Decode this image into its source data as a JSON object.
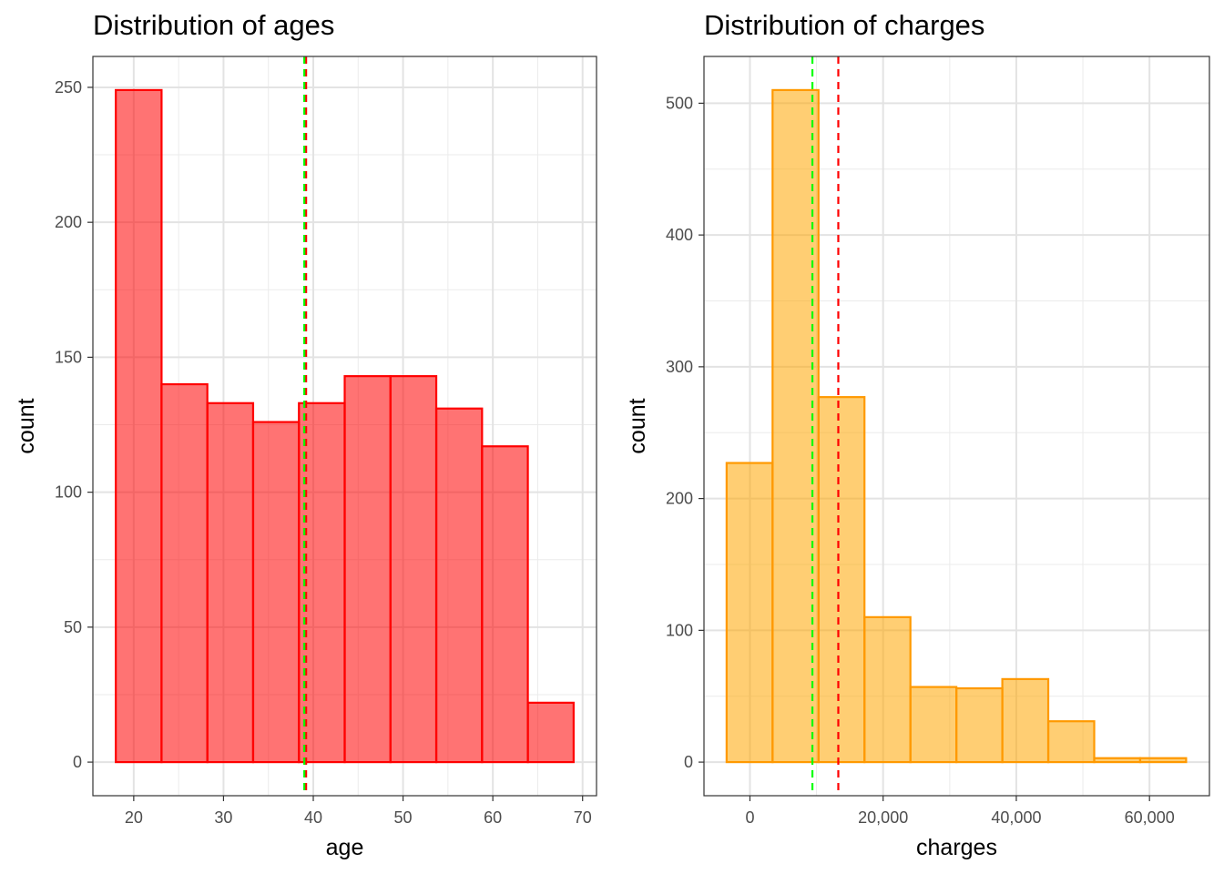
{
  "chart_data": [
    {
      "type": "histogram",
      "title": "Distribution of ages",
      "xlabel": "age",
      "ylabel": "count",
      "xlim": [
        15.45,
        71.55
      ],
      "ylim": [
        -12.45,
        261.45
      ],
      "xticks": [
        20,
        30,
        40,
        50,
        60,
        70
      ],
      "xtick_labels": [
        "20",
        "30",
        "40",
        "50",
        "60",
        "70"
      ],
      "yticks": [
        0,
        50,
        100,
        150,
        200,
        250
      ],
      "ytick_labels": [
        "0",
        "50",
        "100",
        "150",
        "200",
        "250"
      ],
      "bin_edges": [
        18,
        23.1,
        28.2,
        33.3,
        38.4,
        43.5,
        48.6,
        53.7,
        58.8,
        63.9,
        69
      ],
      "counts": [
        249,
        140,
        133,
        126,
        133,
        143,
        143,
        131,
        117,
        22
      ],
      "fill": "#ff0000",
      "fill_opacity": 0.55,
      "stroke": "#ff0000",
      "grid": true,
      "vlines": [
        {
          "value": 39.2,
          "color": "#ff0000",
          "style": "dashed"
        },
        {
          "value": 39.0,
          "color": "#00ff00",
          "style": "dashed"
        }
      ]
    },
    {
      "type": "histogram",
      "title": "Distribution of charges",
      "xlabel": "charges",
      "ylabel": "count",
      "xlim": [
        -6900,
        69000
      ],
      "ylim": [
        -25.5,
        535.5
      ],
      "xticks": [
        0,
        20000,
        40000,
        60000
      ],
      "xtick_labels": [
        "0",
        "20,000",
        "40,000",
        "60,000"
      ],
      "yticks": [
        0,
        100,
        200,
        300,
        400,
        500
      ],
      "ytick_labels": [
        "0",
        "100",
        "200",
        "300",
        "400",
        "500"
      ],
      "bin_edges": [
        -3500,
        3400,
        10300,
        17200,
        24100,
        31000,
        37900,
        44800,
        51700,
        58600,
        65500
      ],
      "counts": [
        227,
        510,
        277,
        110,
        57,
        56,
        63,
        31,
        3,
        3
      ],
      "fill": "#ffa500",
      "fill_opacity": 0.55,
      "stroke": "#ff9900",
      "grid": true,
      "vlines": [
        {
          "value": 13270,
          "color": "#ff0000",
          "style": "dashed"
        },
        {
          "value": 9382,
          "color": "#00ff00",
          "style": "dashed"
        }
      ]
    }
  ]
}
